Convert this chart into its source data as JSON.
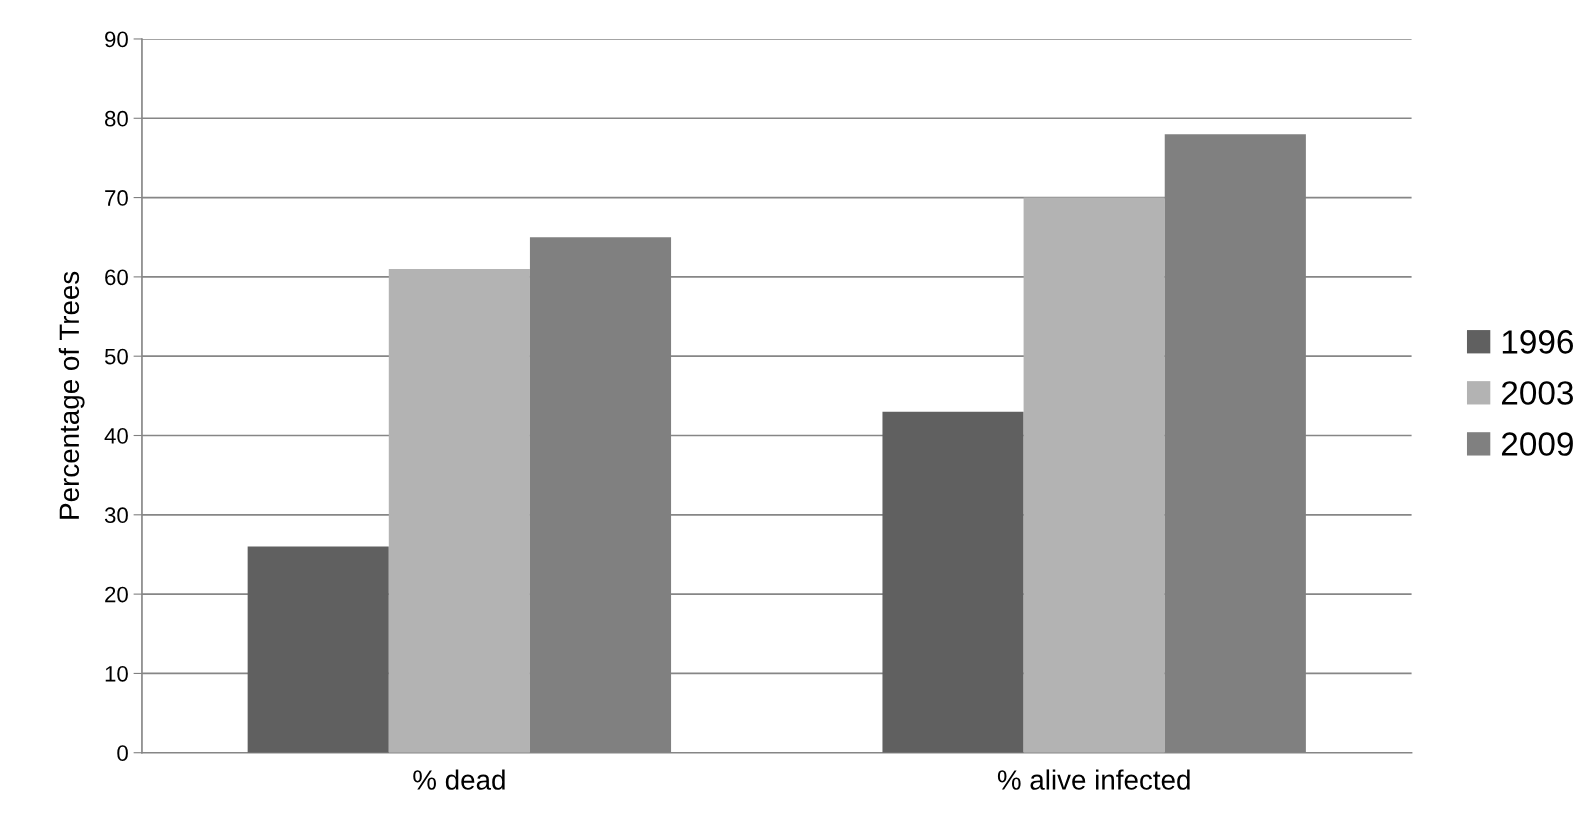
{
  "chart_data": {
    "type": "bar",
    "ylabel": "Percentage of Trees",
    "categories": [
      "% dead",
      "% alive infected"
    ],
    "series": [
      {
        "name": "1996",
        "color": "#606060",
        "values": [
          26,
          43
        ]
      },
      {
        "name": "2003",
        "color": "#b3b3b3",
        "values": [
          61,
          70
        ]
      },
      {
        "name": "2009",
        "color": "#808080",
        "values": [
          65,
          78
        ]
      }
    ],
    "ylim": [
      0,
      90
    ],
    "yticks": [
      0,
      10,
      20,
      30,
      40,
      50,
      60,
      70,
      80,
      90
    ],
    "grid": "y",
    "legend": "right"
  }
}
